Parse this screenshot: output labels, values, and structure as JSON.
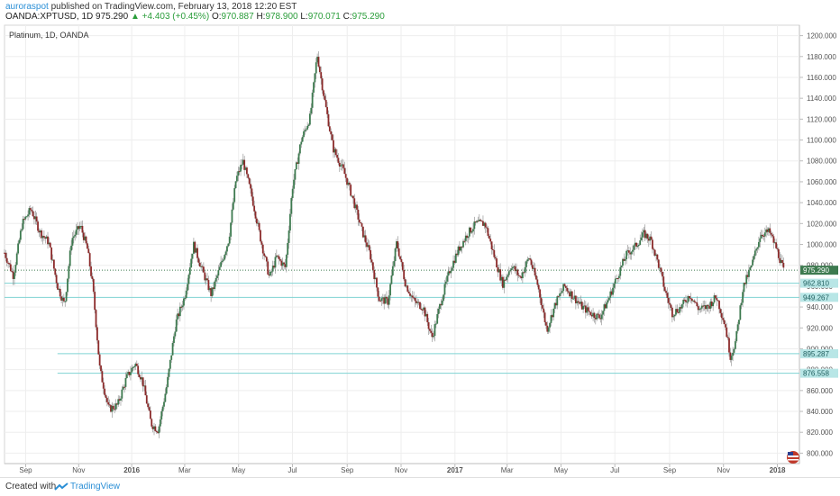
{
  "header": {
    "author": "auroraspot",
    "published": "published on TradingView.com, February 13, 2018 12:20 EST",
    "symbol": "OANDA:XPTUSD, 1D",
    "last": "975.290",
    "change": "+4.403 (+0.45%)",
    "open_label": "O:",
    "open": "970.887",
    "high_label": "H:",
    "high": "978.900",
    "low_label": "L:",
    "low": "970.071",
    "close_label": "C:",
    "close": "975.290"
  },
  "pane_title": "Platinum, 1D, OANDA",
  "footer": {
    "created_with": "Created with",
    "brand": "TradingView"
  },
  "colors": {
    "up": "#3d7a4f",
    "down": "#8b2a2a",
    "wick": "#888888",
    "hline": "#7fd3d3",
    "price_label_bg": "#b8e6e6",
    "last_label_bg": "#3d7a4f",
    "grid": "#eeeeee"
  },
  "chart_data": {
    "type": "candlestick",
    "ylim": [
      790,
      1210
    ],
    "y_ticks": [
      800,
      820,
      840,
      860,
      880,
      900,
      920,
      940,
      960,
      980,
      1000,
      1020,
      1040,
      1060,
      1080,
      1100,
      1120,
      1140,
      1160,
      1180,
      1200
    ],
    "y_tick_labels": [
      "800.000",
      "820.000",
      "840.000",
      "860.000",
      "880.000",
      "900.000",
      "920.000",
      "940.000",
      "960.000",
      "980.000",
      "1000.000",
      "1020.000",
      "1040.000",
      "1060.000",
      "1080.000",
      "1100.000",
      "1120.000",
      "1140.000",
      "1160.000",
      "1180.000",
      "1200.000"
    ],
    "x_labels": [
      "Sep",
      "Nov",
      "2016",
      "Mar",
      "May",
      "Jul",
      "Sep",
      "Nov",
      "2017",
      "Mar",
      "May",
      "Jul",
      "Sep",
      "Nov",
      "2018"
    ],
    "x_label_bold": [
      "2016",
      "2017",
      "2018"
    ],
    "x_label_days": [
      24,
      84,
      144,
      204,
      265,
      326,
      388,
      449,
      510,
      569,
      630,
      691,
      753,
      814,
      875
    ],
    "day_range": [
      0,
      900
    ],
    "price_path": [
      [
        0,
        992
      ],
      [
        10,
        970
      ],
      [
        20,
        1020
      ],
      [
        30,
        1034
      ],
      [
        40,
        1012
      ],
      [
        50,
        1002
      ],
      [
        60,
        960
      ],
      [
        68,
        942
      ],
      [
        76,
        1005
      ],
      [
        86,
        1018
      ],
      [
        94,
        995
      ],
      [
        100,
        960
      ],
      [
        108,
        880
      ],
      [
        118,
        842
      ],
      [
        128,
        846
      ],
      [
        138,
        872
      ],
      [
        148,
        886
      ],
      [
        156,
        870
      ],
      [
        166,
        828
      ],
      [
        174,
        822
      ],
      [
        184,
        866
      ],
      [
        194,
        925
      ],
      [
        204,
        950
      ],
      [
        214,
        1000
      ],
      [
        224,
        975
      ],
      [
        234,
        952
      ],
      [
        244,
        978
      ],
      [
        254,
        1005
      ],
      [
        262,
        1062
      ],
      [
        270,
        1080
      ],
      [
        280,
        1046
      ],
      [
        290,
        1005
      ],
      [
        300,
        968
      ],
      [
        308,
        988
      ],
      [
        318,
        978
      ],
      [
        326,
        1055
      ],
      [
        336,
        1100
      ],
      [
        346,
        1122
      ],
      [
        354,
        1182
      ],
      [
        362,
        1140
      ],
      [
        372,
        1092
      ],
      [
        384,
        1070
      ],
      [
        394,
        1045
      ],
      [
        404,
        1015
      ],
      [
        414,
        990
      ],
      [
        424,
        948
      ],
      [
        434,
        945
      ],
      [
        444,
        1002
      ],
      [
        454,
        962
      ],
      [
        464,
        945
      ],
      [
        474,
        940
      ],
      [
        484,
        910
      ],
      [
        494,
        945
      ],
      [
        504,
        975
      ],
      [
        514,
        995
      ],
      [
        524,
        1010
      ],
      [
        534,
        1020
      ],
      [
        544,
        1020
      ],
      [
        554,
        990
      ],
      [
        564,
        962
      ],
      [
        574,
        980
      ],
      [
        584,
        968
      ],
      [
        594,
        988
      ],
      [
        604,
        960
      ],
      [
        614,
        918
      ],
      [
        624,
        944
      ],
      [
        634,
        960
      ],
      [
        644,
        950
      ],
      [
        654,
        940
      ],
      [
        664,
        934
      ],
      [
        674,
        930
      ],
      [
        684,
        948
      ],
      [
        694,
        970
      ],
      [
        704,
        990
      ],
      [
        714,
        998
      ],
      [
        724,
        1010
      ],
      [
        732,
        1004
      ],
      [
        740,
        982
      ],
      [
        748,
        955
      ],
      [
        756,
        934
      ],
      [
        766,
        940
      ],
      [
        776,
        952
      ],
      [
        786,
        938
      ],
      [
        796,
        940
      ],
      [
        806,
        950
      ],
      [
        816,
        922
      ],
      [
        822,
        892
      ],
      [
        828,
        908
      ],
      [
        836,
        958
      ],
      [
        846,
        980
      ],
      [
        856,
        1010
      ],
      [
        866,
        1012
      ],
      [
        874,
        996
      ],
      [
        882,
        975
      ]
    ],
    "h_levels": [
      {
        "value": 962.81,
        "label": "962.810",
        "from_day": 0
      },
      {
        "value": 949.267,
        "label": "949.267",
        "from_day": 0
      },
      {
        "value": 895.287,
        "label": "895.287",
        "from_day": 60
      },
      {
        "value": 876.558,
        "label": "876.558",
        "from_day": 60
      }
    ],
    "last_price": {
      "value": 975.29,
      "label": "975.290"
    }
  }
}
